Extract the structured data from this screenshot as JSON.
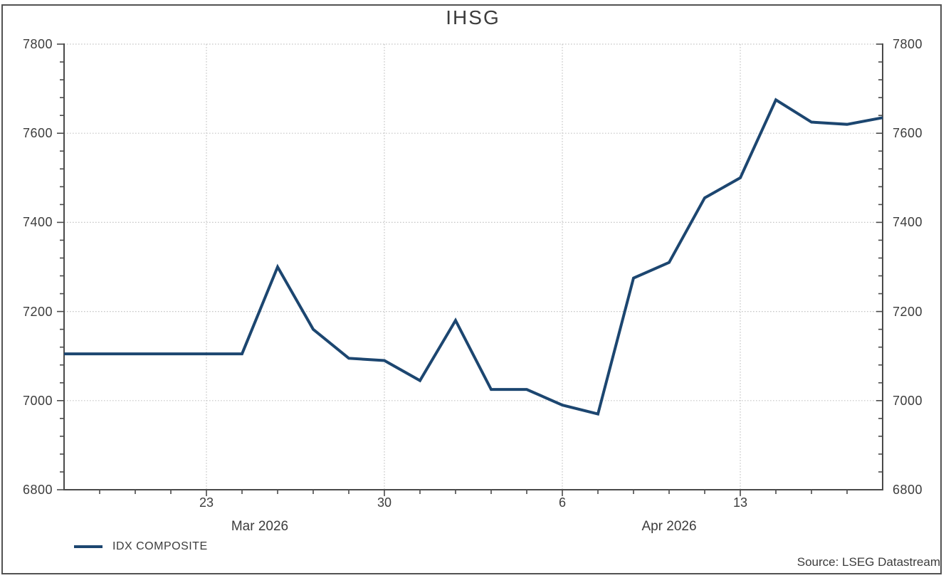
{
  "title": "IHSG",
  "legend": {
    "items": [
      {
        "label": "IDX COMPOSITE",
        "color": "#1c4670"
      }
    ]
  },
  "source": "Source: LSEG Datastream",
  "colors": {
    "line": "#1c4670",
    "axis": "#4a4a4a",
    "grid": "#c6c6c6",
    "text": "#3c3c3c",
    "background": "#ffffff"
  },
  "chart_data": {
    "type": "line",
    "title": "IHSG",
    "series": [
      {
        "name": "IDX COMPOSITE",
        "dates": [
          "2026-03-17",
          "2026-03-18",
          "2026-03-19",
          "2026-03-20",
          "2026-03-23",
          "2026-03-24",
          "2026-03-25",
          "2026-03-26",
          "2026-03-27",
          "2026-03-30",
          "2026-03-31",
          "2026-04-01",
          "2026-04-02",
          "2026-04-03",
          "2026-04-06",
          "2026-04-07",
          "2026-04-08",
          "2026-04-09",
          "2026-04-10",
          "2026-04-13",
          "2026-04-14",
          "2026-04-15",
          "2026-04-16",
          "2026-04-17"
        ],
        "values": [
          7105,
          7105,
          7105,
          7105,
          7105,
          7105,
          7300,
          7160,
          7095,
          7090,
          7045,
          7180,
          7025,
          7025,
          6990,
          6970,
          7275,
          7310,
          7455,
          7500,
          7675,
          7625,
          7620,
          7635
        ]
      }
    ],
    "ylim": [
      6800,
      7800
    ],
    "y_major_step": 200,
    "y_minor_step": 40,
    "y_tick_labels": [
      6800,
      7000,
      7200,
      7400,
      7600,
      7800
    ],
    "x_week_ticks": [
      {
        "index": 4,
        "label": "23"
      },
      {
        "index": 9,
        "label": "30"
      },
      {
        "index": 14,
        "label": "6"
      },
      {
        "index": 19,
        "label": "13"
      }
    ],
    "x_month_labels": [
      {
        "label": "Mar 2026",
        "center_index": 5.5
      },
      {
        "label": "Apr 2026",
        "center_index": 17
      }
    ],
    "grid": "dotted",
    "legend_position": "bottom-left"
  }
}
